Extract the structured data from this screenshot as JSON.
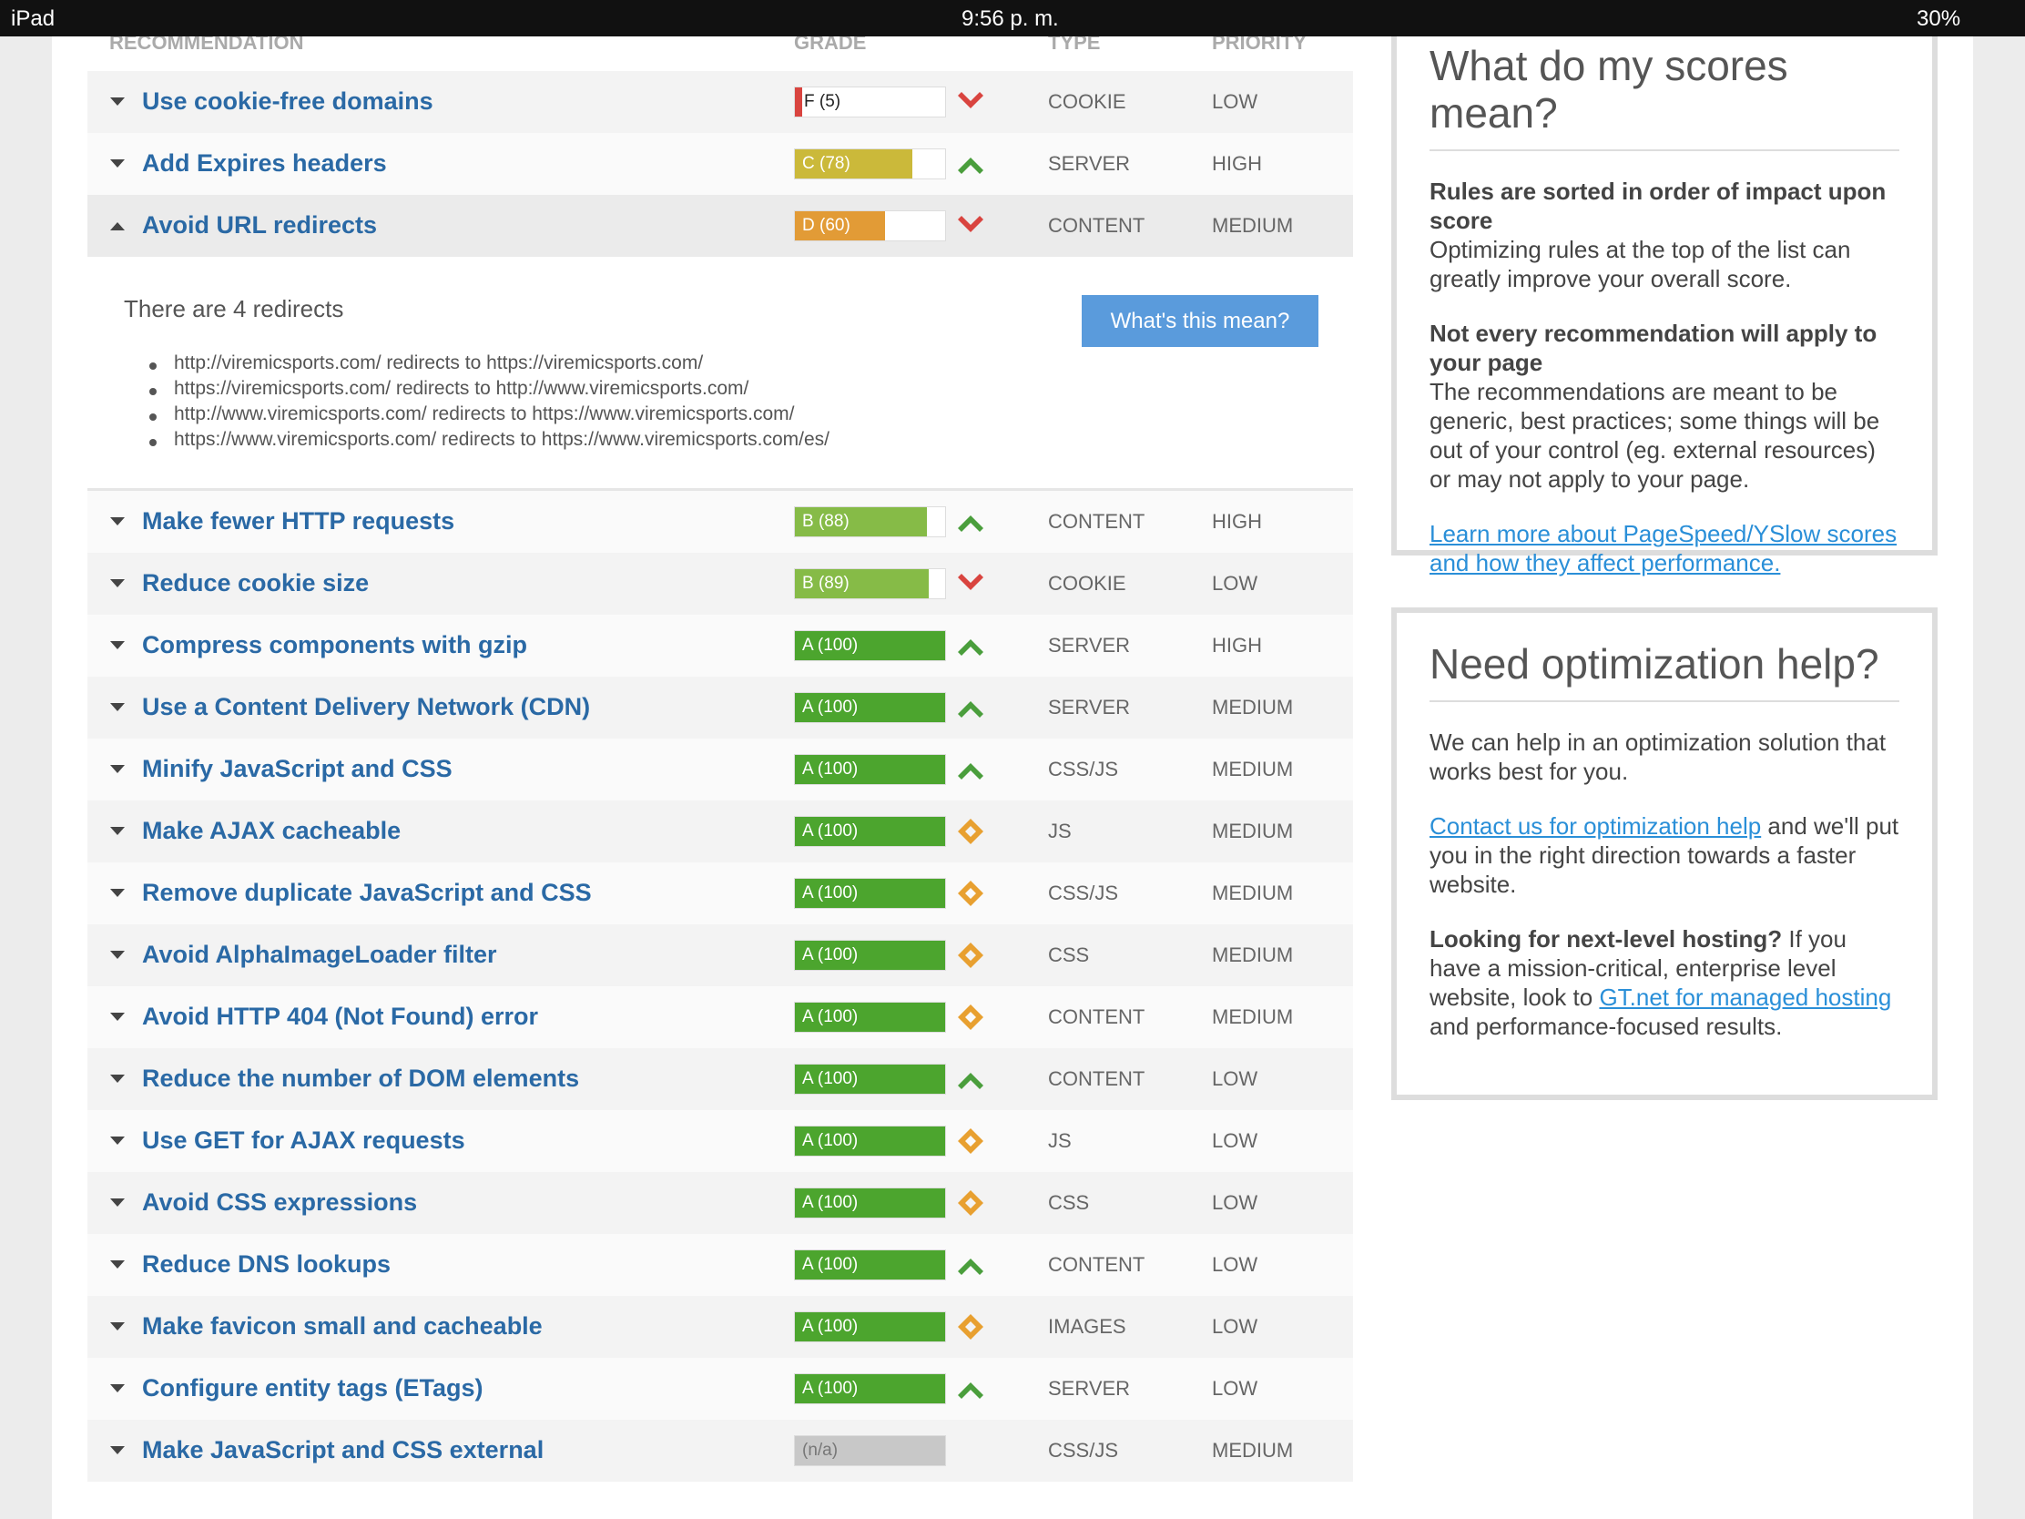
{
  "status_bar": {
    "device": "iPad",
    "time": "9:56 p. m.",
    "battery": "30%"
  },
  "table": {
    "headers": [
      "RECOMMENDATION",
      "GRADE",
      "TYPE",
      "PRIORITY"
    ],
    "rows": [
      {
        "title": "Use cookie-free domains",
        "grade": {
          "value": 5,
          "label": "F (5)"
        },
        "color": "#d9443f",
        "icon": "down",
        "type": "COOKIE",
        "priority": "LOW"
      },
      {
        "title": "Add Expires headers",
        "grade": {
          "value": 78,
          "label": "C (78)"
        },
        "color": "#cbb93a",
        "icon": "up",
        "type": "SERVER",
        "priority": "HIGH"
      },
      {
        "title": "Avoid URL redirects",
        "grade": {
          "value": 60,
          "label": "D (60)"
        },
        "color": "#e29b36",
        "icon": "down",
        "type": "CONTENT",
        "priority": "MEDIUM",
        "details": {
          "text": "There are 4 redirects",
          "button": "What's this mean?",
          "items": [
            "http://viremicsports.com/ redirects to https://viremicsports.com/",
            "https://viremicsports.com/ redirects to http://www.viremicsports.com/",
            "http://www.viremicsports.com/ redirects to https://www.viremicsports.com/",
            "https://www.viremicsports.com/ redirects to https://www.viremicsports.com/es/"
          ]
        }
      },
      {
        "title": "Make fewer HTTP requests",
        "grade": {
          "value": 88,
          "label": "B (88)"
        },
        "color": "#86bb47",
        "icon": "up",
        "type": "CONTENT",
        "priority": "HIGH"
      },
      {
        "title": "Reduce cookie size",
        "grade": {
          "value": 89,
          "label": "B (89)"
        },
        "color": "#86bb47",
        "icon": "down",
        "type": "COOKIE",
        "priority": "LOW"
      },
      {
        "title": "Compress components with gzip",
        "grade": {
          "value": 100,
          "label": "A (100)"
        },
        "color": "#4ca52e",
        "icon": "up",
        "type": "SERVER",
        "priority": "HIGH"
      },
      {
        "title": "Use a Content Delivery Network (CDN)",
        "grade": {
          "value": 100,
          "label": "A (100)"
        },
        "color": "#4ca52e",
        "icon": "up",
        "type": "SERVER",
        "priority": "MEDIUM"
      },
      {
        "title": "Minify JavaScript and CSS",
        "grade": {
          "value": 100,
          "label": "A (100)"
        },
        "color": "#4ca52e",
        "icon": "up",
        "type": "CSS/JS",
        "priority": "MEDIUM"
      },
      {
        "title": "Make AJAX cacheable",
        "grade": {
          "value": 100,
          "label": "A (100)"
        },
        "color": "#4ca52e",
        "icon": "diamond",
        "type": "JS",
        "priority": "MEDIUM"
      },
      {
        "title": "Remove duplicate JavaScript and CSS",
        "grade": {
          "value": 100,
          "label": "A (100)"
        },
        "color": "#4ca52e",
        "icon": "diamond",
        "type": "CSS/JS",
        "priority": "MEDIUM"
      },
      {
        "title": "Avoid AlphaImageLoader filter",
        "grade": {
          "value": 100,
          "label": "A (100)"
        },
        "color": "#4ca52e",
        "icon": "diamond",
        "type": "CSS",
        "priority": "MEDIUM"
      },
      {
        "title": "Avoid HTTP 404 (Not Found) error",
        "grade": {
          "value": 100,
          "label": "A (100)"
        },
        "color": "#4ca52e",
        "icon": "diamond",
        "type": "CONTENT",
        "priority": "MEDIUM"
      },
      {
        "title": "Reduce the number of DOM elements",
        "grade": {
          "value": 100,
          "label": "A (100)"
        },
        "color": "#4ca52e",
        "icon": "up",
        "type": "CONTENT",
        "priority": "LOW"
      },
      {
        "title": "Use GET for AJAX requests",
        "grade": {
          "value": 100,
          "label": "A (100)"
        },
        "color": "#4ca52e",
        "icon": "diamond",
        "type": "JS",
        "priority": "LOW"
      },
      {
        "title": "Avoid CSS expressions",
        "grade": {
          "value": 100,
          "label": "A (100)"
        },
        "color": "#4ca52e",
        "icon": "diamond",
        "type": "CSS",
        "priority": "LOW"
      },
      {
        "title": "Reduce DNS lookups",
        "grade": {
          "value": 100,
          "label": "A (100)"
        },
        "color": "#4ca52e",
        "icon": "up",
        "type": "CONTENT",
        "priority": "LOW"
      },
      {
        "title": "Make favicon small and cacheable",
        "grade": {
          "value": 100,
          "label": "A (100)"
        },
        "color": "#4ca52e",
        "icon": "diamond",
        "type": "IMAGES",
        "priority": "LOW"
      },
      {
        "title": "Configure entity tags (ETags)",
        "grade": {
          "value": 100,
          "label": "A (100)"
        },
        "color": "#4ca52e",
        "icon": "up",
        "type": "SERVER",
        "priority": "LOW"
      },
      {
        "title": "Make JavaScript and CSS external",
        "grade": {
          "value": null,
          "label": "(n/a)"
        },
        "color": "#c8c8c8",
        "icon": "none",
        "type": "CSS/JS",
        "priority": "MEDIUM"
      }
    ]
  },
  "sidebar": {
    "scores": {
      "title": "What do my scores mean?",
      "p1_bold": "Rules are sorted in order of impact upon score",
      "p1": "Optimizing rules at the top of the list can greatly improve your overall score.",
      "p2_bold": "Not every recommendation will apply to your page",
      "p2": "The recommendations are meant to be generic, best practices; some things will be out of your control (eg. external resources) or may not apply to your page.",
      "link": "Learn more about PageSpeed/YSlow scores and how they affect performance."
    },
    "help": {
      "title": "Need optimization help?",
      "p1": "We can help in an optimization solution that works best for you.",
      "p2_link": "Contact us for optimization help",
      "p2": " and we'll put you in the right direction towards a faster website.",
      "p3_bold": "Looking for next-level hosting?",
      "p3": " If you have a mission-critical, enterprise level website, look to ",
      "p3_link": "GT.net for managed hosting",
      "p3_end": " and performance-focused results."
    }
  }
}
